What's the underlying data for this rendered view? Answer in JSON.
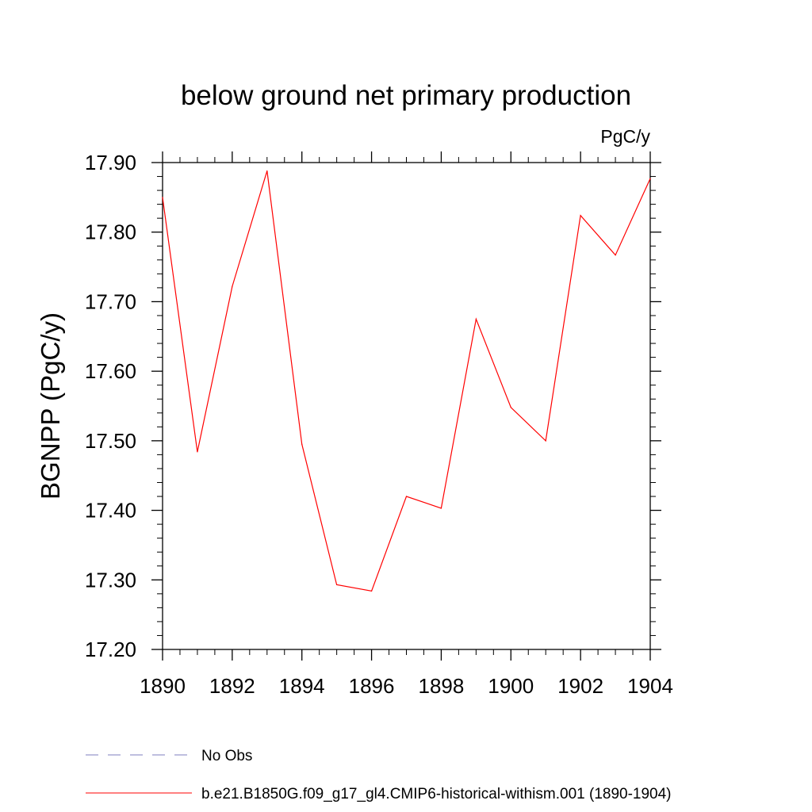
{
  "chart_data": {
    "type": "line",
    "title": "below ground net primary production",
    "units_label": "PgC/y",
    "ylabel": "BGNPP  (PgC/y)",
    "xlabel": "",
    "xlim": [
      1890,
      1904
    ],
    "ylim": [
      17.2,
      17.9
    ],
    "x_ticks": [
      1890,
      1892,
      1894,
      1896,
      1898,
      1900,
      1902,
      1904
    ],
    "y_ticks": [
      17.2,
      17.3,
      17.4,
      17.5,
      17.6,
      17.7,
      17.8,
      17.9
    ],
    "y_tick_labels": [
      "17.20",
      "17.30",
      "17.40",
      "17.50",
      "17.60",
      "17.70",
      "17.80",
      "17.90"
    ],
    "grid": false,
    "legend_position": "bottom",
    "series": [
      {
        "name": "b.e21.B1850G.f09_g17_gl4.CMIP6-historical-withism.001 (1890-1904)",
        "color": "#ff0000",
        "x": [
          1890,
          1891,
          1892,
          1893,
          1894,
          1895,
          1896,
          1897,
          1898,
          1899,
          1900,
          1901,
          1902,
          1903,
          1904
        ],
        "values": [
          17.85,
          17.484,
          17.722,
          17.888,
          17.495,
          17.293,
          17.284,
          17.42,
          17.403,
          17.675,
          17.548,
          17.5,
          17.824,
          17.767,
          17.877
        ]
      }
    ],
    "legend": [
      {
        "label": "No Obs",
        "color": "#7f7fbf",
        "dashed": true
      },
      {
        "label": "b.e21.B1850G.f09_g17_gl4.CMIP6-historical-withism.001 (1890-1904)",
        "color": "#ff0000",
        "dashed": false
      }
    ]
  }
}
